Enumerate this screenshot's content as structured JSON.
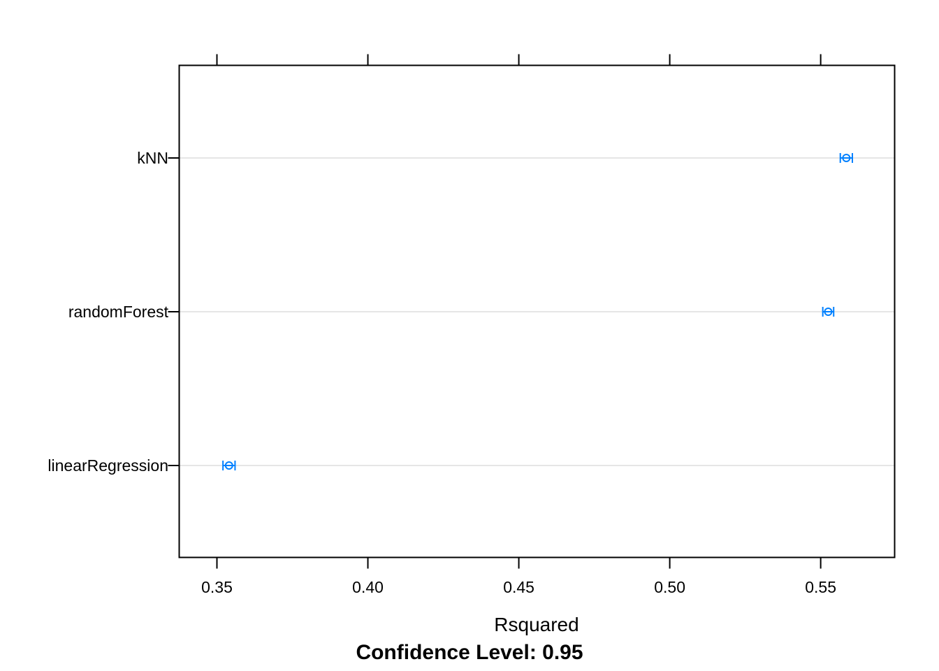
{
  "chart_data": {
    "type": "dotplot",
    "orientation": "horizontal",
    "xlabel": "Rsquared",
    "subtitle": "Confidence Level: 0.95",
    "xlim": [
      0.3375,
      0.5745
    ],
    "xticks": [
      0.35,
      0.4,
      0.45,
      0.5,
      0.55
    ],
    "xtick_labels": [
      "0.35",
      "0.40",
      "0.45",
      "0.50",
      "0.55"
    ],
    "grid": "horizontal reference lines at each category",
    "point_color": "#0080ff",
    "categories": [
      "kNN",
      "randomForest",
      "linearRegression"
    ],
    "series": [
      {
        "estimate": [
          0.5585,
          0.5525,
          0.354
        ],
        "lower": [
          0.5565,
          0.5507,
          0.352
        ],
        "upper": [
          0.5605,
          0.5543,
          0.356
        ]
      }
    ]
  }
}
